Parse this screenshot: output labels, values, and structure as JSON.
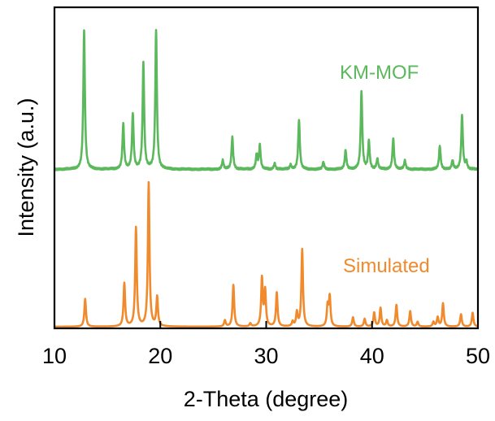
{
  "chart_data": {
    "type": "line",
    "xlabel": "2-Theta (degree)",
    "ylabel": "Intensity (a.u.)",
    "xlim": [
      10,
      50
    ],
    "x_ticks": [
      "10",
      "20",
      "30",
      "40",
      "50"
    ],
    "y_ticks_shown": false,
    "grid": false,
    "legend": "inline labels near each trace",
    "series": [
      {
        "name": "KM-MOF",
        "color": "#5cb85c",
        "baseline": 0.02,
        "peaks": [
          {
            "x": 12.8,
            "y": 0.95
          },
          {
            "x": 16.5,
            "y": 0.31
          },
          {
            "x": 17.4,
            "y": 0.38
          },
          {
            "x": 18.4,
            "y": 0.72
          },
          {
            "x": 19.6,
            "y": 0.95
          },
          {
            "x": 25.9,
            "y": 0.06
          },
          {
            "x": 26.8,
            "y": 0.22
          },
          {
            "x": 29.1,
            "y": 0.1
          },
          {
            "x": 29.4,
            "y": 0.16
          },
          {
            "x": 30.8,
            "y": 0.04
          },
          {
            "x": 32.3,
            "y": 0.03
          },
          {
            "x": 33.1,
            "y": 0.34
          },
          {
            "x": 35.4,
            "y": 0.05
          },
          {
            "x": 37.5,
            "y": 0.13
          },
          {
            "x": 39.0,
            "y": 0.53
          },
          {
            "x": 39.7,
            "y": 0.19
          },
          {
            "x": 40.5,
            "y": 0.07
          },
          {
            "x": 42.0,
            "y": 0.21
          },
          {
            "x": 43.1,
            "y": 0.06
          },
          {
            "x": 46.4,
            "y": 0.16
          },
          {
            "x": 47.6,
            "y": 0.06
          },
          {
            "x": 48.5,
            "y": 0.37
          },
          {
            "x": 48.9,
            "y": 0.05
          }
        ]
      },
      {
        "name": "Simulated",
        "color": "#f08a2c",
        "baseline": 0.0,
        "peaks": [
          {
            "x": 12.9,
            "y": 0.18
          },
          {
            "x": 16.6,
            "y": 0.28
          },
          {
            "x": 17.7,
            "y": 0.64
          },
          {
            "x": 18.9,
            "y": 0.93
          },
          {
            "x": 19.7,
            "y": 0.19
          },
          {
            "x": 26.1,
            "y": 0.04
          },
          {
            "x": 26.9,
            "y": 0.27
          },
          {
            "x": 28.5,
            "y": 0.02
          },
          {
            "x": 29.6,
            "y": 0.31
          },
          {
            "x": 29.9,
            "y": 0.23
          },
          {
            "x": 31.0,
            "y": 0.22
          },
          {
            "x": 32.5,
            "y": 0.03
          },
          {
            "x": 32.9,
            "y": 0.09
          },
          {
            "x": 33.4,
            "y": 0.5
          },
          {
            "x": 35.8,
            "y": 0.13
          },
          {
            "x": 36.0,
            "y": 0.19
          },
          {
            "x": 38.2,
            "y": 0.06
          },
          {
            "x": 39.3,
            "y": 0.05
          },
          {
            "x": 40.2,
            "y": 0.09
          },
          {
            "x": 40.8,
            "y": 0.12
          },
          {
            "x": 41.4,
            "y": 0.04
          },
          {
            "x": 42.3,
            "y": 0.14
          },
          {
            "x": 43.6,
            "y": 0.1
          },
          {
            "x": 44.3,
            "y": 0.03
          },
          {
            "x": 45.8,
            "y": 0.03
          },
          {
            "x": 46.2,
            "y": 0.06
          },
          {
            "x": 46.7,
            "y": 0.15
          },
          {
            "x": 48.4,
            "y": 0.08
          },
          {
            "x": 49.5,
            "y": 0.09
          }
        ]
      }
    ]
  }
}
